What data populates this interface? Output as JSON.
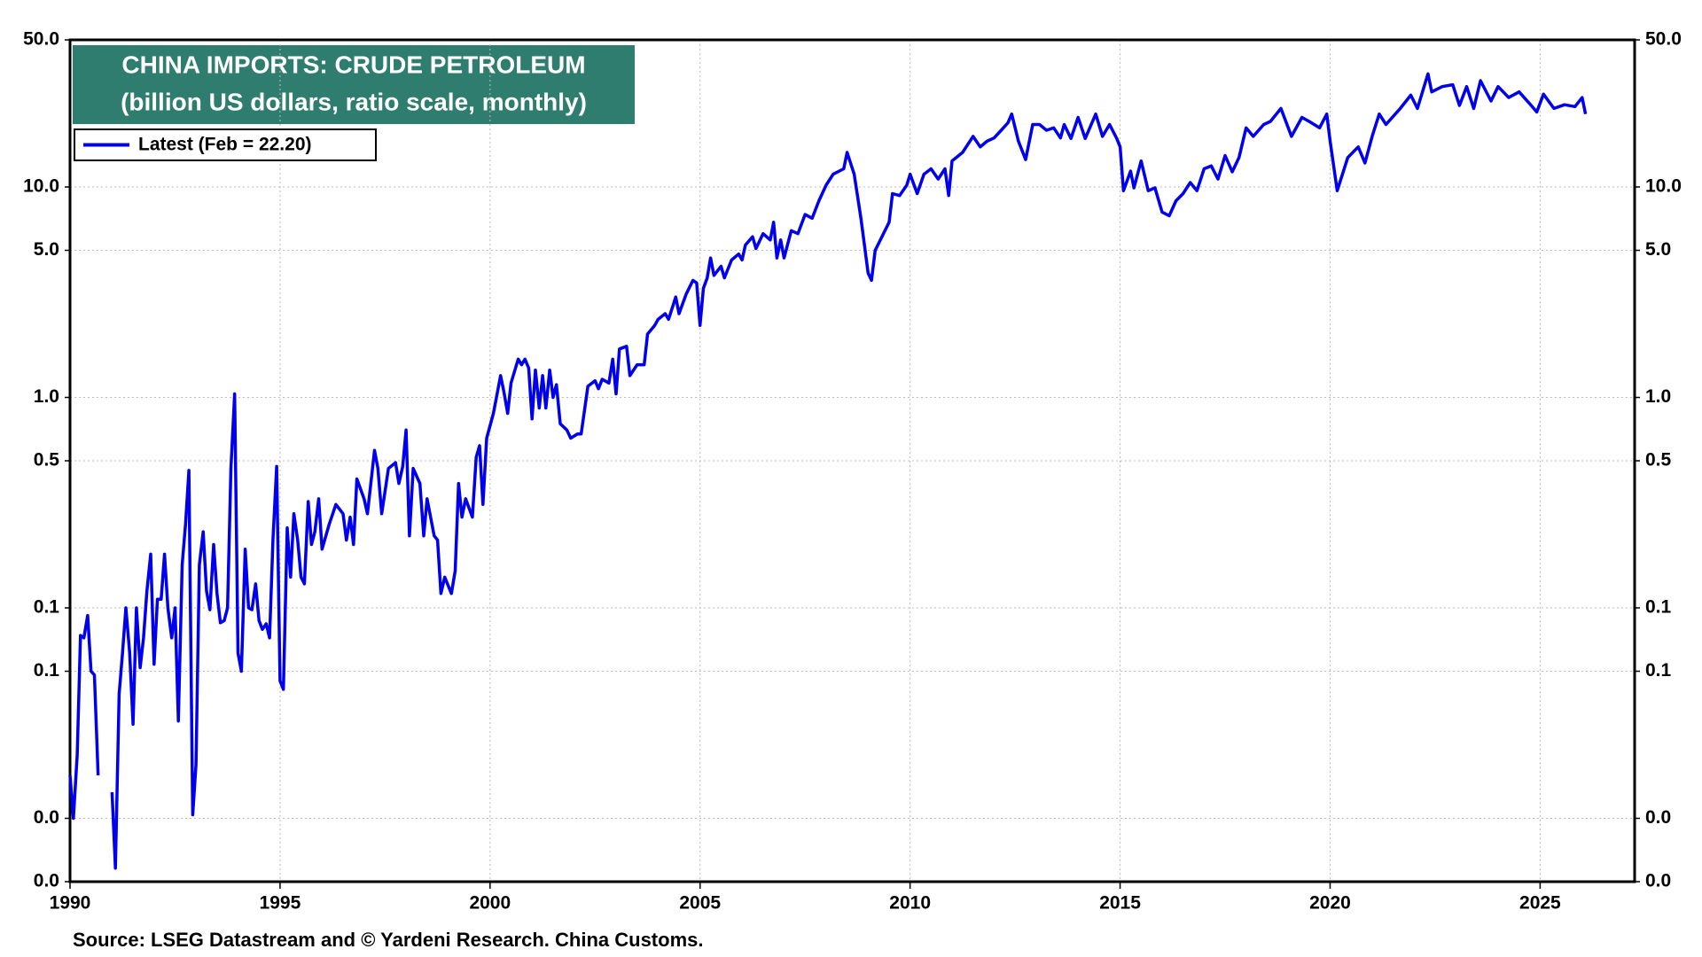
{
  "chart_data": {
    "type": "line",
    "title": "CHINA IMPORTS: CRUDE PETROLEUM",
    "subtitle": "(billion US dollars, ratio scale, monthly)",
    "source": "Source: LSEG Datastream and © Yardeni Research. China Customs.",
    "log_scale": true,
    "grid": true,
    "legend": "upper left",
    "xlim": [
      1990,
      2027.25
    ],
    "xticks": [
      1990,
      1995,
      2000,
      2005,
      2010,
      2015,
      2020,
      2025
    ],
    "ylim": [
      0.005,
      50
    ],
    "yticks": [
      {
        "value": 50,
        "label": "50.0"
      },
      {
        "value": 10,
        "label": "10.0"
      },
      {
        "value": 5,
        "label": "5.0"
      },
      {
        "value": 1,
        "label": "1.0"
      },
      0.5,
      0.1,
      {
        "value": 0.05,
        "label": "0.1"
      },
      {
        "value": 0.01,
        "label": "0.0"
      },
      {
        "value": 0.005,
        "label": "0.0"
      }
    ],
    "x": [
      1990.0,
      1990.08,
      1990.17,
      1990.25,
      1990.33,
      1990.42,
      1990.5,
      1990.58,
      1990.67,
      1990.83,
      1991.0,
      1991.08,
      1991.17,
      1991.25,
      1991.33,
      1991.42,
      1991.5,
      1991.58,
      1991.67,
      1991.75,
      1991.83,
      1991.92,
      1992.0,
      1992.08,
      1992.17,
      1992.25,
      1992.33,
      1992.42,
      1992.5,
      1992.58,
      1992.67,
      1992.75,
      1992.83,
      1992.92,
      1993.0,
      1993.08,
      1993.17,
      1993.25,
      1993.33,
      1993.42,
      1993.5,
      1993.58,
      1993.67,
      1993.75,
      1993.83,
      1993.92,
      1994.0,
      1994.08,
      1994.17,
      1994.25,
      1994.33,
      1994.42,
      1994.5,
      1994.58,
      1994.67,
      1994.75,
      1994.83,
      1994.92,
      1995.0,
      1995.08,
      1995.17,
      1995.25,
      1995.33,
      1995.42,
      1995.5,
      1995.58,
      1995.67,
      1995.75,
      1995.83,
      1995.92,
      1996.0,
      1996.17,
      1996.33,
      1996.5,
      1996.58,
      1996.67,
      1996.75,
      1996.83,
      1997.0,
      1997.08,
      1997.25,
      1997.33,
      1997.42,
      1997.58,
      1997.75,
      1997.83,
      1997.92,
      1998.0,
      1998.08,
      1998.17,
      1998.33,
      1998.42,
      1998.5,
      1998.67,
      1998.75,
      1998.83,
      1998.92,
      1999.08,
      1999.17,
      1999.25,
      1999.33,
      1999.42,
      1999.58,
      1999.67,
      1999.75,
      1999.83,
      1999.92,
      2000.08,
      2000.25,
      2000.33,
      2000.42,
      2000.5,
      2000.67,
      2000.75,
      2000.83,
      2000.92,
      2001.0,
      2001.08,
      2001.17,
      2001.25,
      2001.33,
      2001.42,
      2001.5,
      2001.58,
      2001.67,
      2001.83,
      2001.92,
      2002.08,
      2002.17,
      2002.33,
      2002.5,
      2002.58,
      2002.67,
      2002.83,
      2002.92,
      2003.0,
      2003.08,
      2003.25,
      2003.33,
      2003.5,
      2003.67,
      2003.75,
      2003.92,
      2004.0,
      2004.17,
      2004.25,
      2004.42,
      2004.5,
      2004.67,
      2004.83,
      2004.92,
      2005.0,
      2005.08,
      2005.17,
      2005.25,
      2005.33,
      2005.5,
      2005.58,
      2005.75,
      2005.92,
      2006.0,
      2006.08,
      2006.25,
      2006.33,
      2006.5,
      2006.67,
      2006.75,
      2006.83,
      2006.92,
      2007.0,
      2007.17,
      2007.33,
      2007.5,
      2007.67,
      2007.83,
      2008.0,
      2008.17,
      2008.42,
      2008.5,
      2008.67,
      2008.83,
      2009.0,
      2009.08,
      2009.17,
      2009.33,
      2009.5,
      2009.58,
      2009.75,
      2009.92,
      2010.0,
      2010.17,
      2010.33,
      2010.5,
      2010.67,
      2010.83,
      2010.92,
      2011.0,
      2011.25,
      2011.5,
      2011.67,
      2011.83,
      2012.0,
      2012.17,
      2012.33,
      2012.42,
      2012.58,
      2012.75,
      2012.92,
      2013.08,
      2013.25,
      2013.42,
      2013.58,
      2013.67,
      2013.83,
      2014.0,
      2014.17,
      2014.42,
      2014.58,
      2014.75,
      2014.92,
      2015.0,
      2015.08,
      2015.25,
      2015.33,
      2015.5,
      2015.67,
      2015.83,
      2016.0,
      2016.17,
      2016.33,
      2016.5,
      2016.67,
      2016.83,
      2017.0,
      2017.17,
      2017.33,
      2017.5,
      2017.67,
      2017.83,
      2018.0,
      2018.17,
      2018.42,
      2018.58,
      2018.83,
      2019.08,
      2019.33,
      2019.5,
      2019.75,
      2019.92,
      2020.0,
      2020.17,
      2020.42,
      2020.67,
      2020.83,
      2021.0,
      2021.17,
      2021.33,
      2021.67,
      2021.92,
      2022.08,
      2022.33,
      2022.42,
      2022.67,
      2022.92,
      2023.08,
      2023.25,
      2023.42,
      2023.58,
      2023.83,
      2024.0,
      2024.25,
      2024.5,
      2024.75,
      2024.92,
      2025.08,
      2025.33,
      2025.58,
      2025.83,
      2026.0,
      2026.08
    ],
    "series": [
      {
        "name": "Latest (Feb = 22.20)",
        "color": "#0000ee",
        "values": [
          0.016,
          0.01,
          0.02,
          0.074,
          0.072,
          0.092,
          0.05,
          0.048,
          0.016,
          null,
          0.0133,
          0.0058,
          0.039,
          0.061,
          0.1,
          0.061,
          0.028,
          0.1,
          0.052,
          0.072,
          0.12,
          0.18,
          0.054,
          0.11,
          0.11,
          0.18,
          0.1,
          0.072,
          0.1,
          0.029,
          0.16,
          0.25,
          0.45,
          0.0104,
          0.018,
          0.16,
          0.23,
          0.12,
          0.098,
          0.2,
          0.117,
          0.085,
          0.087,
          0.1,
          0.46,
          1.04,
          0.061,
          0.05,
          0.19,
          0.1,
          0.098,
          0.13,
          0.087,
          0.079,
          0.084,
          0.072,
          0.21,
          0.47,
          0.045,
          0.041,
          0.24,
          0.14,
          0.28,
          0.21,
          0.14,
          0.13,
          0.32,
          0.2,
          0.23,
          0.33,
          0.19,
          0.25,
          0.31,
          0.28,
          0.21,
          0.27,
          0.2,
          0.41,
          0.33,
          0.28,
          0.56,
          0.46,
          0.28,
          0.46,
          0.49,
          0.39,
          0.47,
          0.7,
          0.22,
          0.46,
          0.39,
          0.22,
          0.33,
          0.22,
          0.21,
          0.117,
          0.14,
          0.117,
          0.15,
          0.39,
          0.27,
          0.33,
          0.27,
          0.52,
          0.59,
          0.31,
          0.64,
          0.84,
          1.27,
          1.06,
          0.84,
          1.17,
          1.52,
          1.43,
          1.52,
          1.38,
          0.79,
          1.35,
          0.89,
          1.27,
          0.89,
          1.35,
          1.0,
          1.15,
          0.75,
          0.7,
          0.64,
          0.67,
          0.67,
          1.13,
          1.2,
          1.1,
          1.22,
          1.17,
          1.52,
          1.04,
          1.7,
          1.75,
          1.27,
          1.43,
          1.43,
          2.0,
          2.2,
          2.35,
          2.5,
          2.35,
          3.0,
          2.5,
          3.1,
          3.6,
          3.5,
          2.2,
          3.3,
          3.7,
          4.6,
          3.8,
          4.2,
          3.7,
          4.5,
          4.8,
          4.5,
          5.3,
          5.8,
          5.1,
          6.0,
          5.6,
          6.8,
          4.6,
          5.6,
          4.6,
          6.2,
          6.0,
          7.4,
          7.1,
          8.6,
          10.2,
          11.5,
          12.2,
          14.6,
          11.5,
          7.1,
          3.9,
          3.6,
          5.0,
          5.8,
          6.8,
          9.3,
          9.1,
          10.2,
          11.5,
          9.3,
          11.5,
          12.2,
          10.9,
          12.2,
          9.1,
          13.3,
          14.6,
          17.4,
          15.5,
          16.5,
          17.1,
          18.6,
          20.2,
          22.2,
          16.5,
          13.5,
          19.8,
          19.8,
          18.6,
          19.1,
          17.1,
          19.8,
          17.0,
          21.4,
          17.0,
          22.2,
          17.4,
          19.8,
          17.0,
          15.5,
          9.6,
          11.9,
          9.9,
          13.3,
          9.6,
          9.9,
          7.6,
          7.3,
          8.6,
          9.3,
          10.5,
          9.6,
          12.2,
          12.6,
          10.9,
          14.1,
          11.8,
          13.8,
          19.1,
          17.4,
          19.8,
          20.5,
          23.6,
          17.4,
          21.4,
          20.5,
          19.1,
          22.2,
          16.5,
          9.6,
          13.8,
          15.5,
          13.0,
          17.4,
          22.2,
          19.8,
          23.6,
          27.3,
          23.6,
          34.5,
          28.3,
          30.0,
          30.6,
          24.4,
          30.0,
          23.6,
          32,
          25.6,
          30.0,
          26.6,
          28.3,
          24.9,
          22.7,
          27.6,
          23.6,
          24.6,
          24.1,
          26.6,
          22.2
        ]
      }
    ]
  }
}
